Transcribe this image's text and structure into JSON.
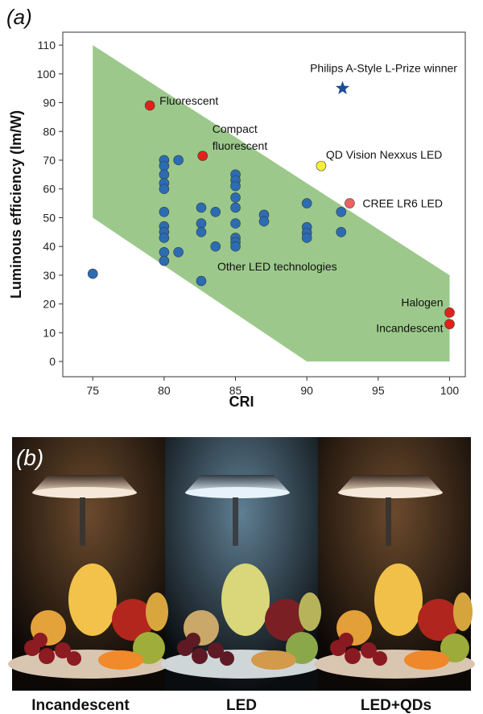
{
  "panel_labels": [
    "(a)",
    "(b)"
  ],
  "photo_captions": [
    "Incandescent",
    "LED",
    "LED+QDs"
  ],
  "chart_data": {
    "type": "scatter",
    "xlabel": "CRI",
    "ylabel": "Luminous efficiency (lm/W)",
    "xlim": [
      72.9,
      101.1
    ],
    "ylim": [
      -5.3,
      114.5
    ],
    "xticks": [
      75,
      80,
      85,
      90,
      95,
      100
    ],
    "yticks": [
      0,
      10,
      20,
      30,
      40,
      50,
      60,
      70,
      80,
      90,
      100,
      110
    ],
    "region": {
      "color": "#9cc98b",
      "x": [
        75,
        75,
        90,
        100,
        100
      ],
      "y": [
        110,
        50,
        0,
        0,
        30
      ]
    },
    "series": [
      {
        "name": "Other LED technologies",
        "color": "#2b6cb3",
        "marker": "circle",
        "x": [
          75,
          80,
          80,
          80,
          80,
          80,
          80,
          80,
          80,
          80,
          80,
          80,
          81,
          81,
          82.6,
          82.6,
          82.6,
          82.6,
          83.6,
          83.6,
          85,
          85,
          85,
          85,
          85,
          85,
          85,
          85,
          85,
          87,
          87,
          90,
          90,
          90,
          90,
          92.4,
          92.4
        ],
        "values": [
          30.5,
          70,
          68,
          65,
          62,
          60,
          52,
          47,
          45,
          43,
          38,
          35,
          70,
          38,
          53.5,
          48,
          45,
          28,
          52,
          40,
          65,
          63,
          61,
          57,
          53.5,
          48,
          43,
          41.5,
          40,
          51,
          48.7,
          55,
          46.7,
          44.7,
          43,
          52,
          45
        ]
      },
      {
        "name": "Fluorescent",
        "color": "#e3211c",
        "marker": "circle",
        "x": [
          79
        ],
        "values": [
          89
        ]
      },
      {
        "name": "Compact fluorescent",
        "color": "#e3211c",
        "marker": "circle",
        "x": [
          82.7
        ],
        "values": [
          71.5
        ]
      },
      {
        "name": "QD Vision Nexxus LED",
        "color": "#f4ee3a",
        "marker": "circle",
        "x": [
          91
        ],
        "values": [
          68
        ]
      },
      {
        "name": "CREE LR6 LED",
        "color": "#ee6060",
        "marker": "circle",
        "x": [
          93
        ],
        "values": [
          55
        ]
      },
      {
        "name": "Halogen",
        "color": "#e3211c",
        "marker": "circle",
        "x": [
          100
        ],
        "values": [
          17
        ]
      },
      {
        "name": "Incandescent",
        "color": "#e3211c",
        "marker": "circle",
        "x": [
          100
        ],
        "values": [
          13
        ]
      },
      {
        "name": "Philips A-Style L-Prize winner",
        "color": "#1f4d98",
        "marker": "star",
        "x": [
          92.5
        ],
        "values": [
          95
        ]
      }
    ]
  }
}
